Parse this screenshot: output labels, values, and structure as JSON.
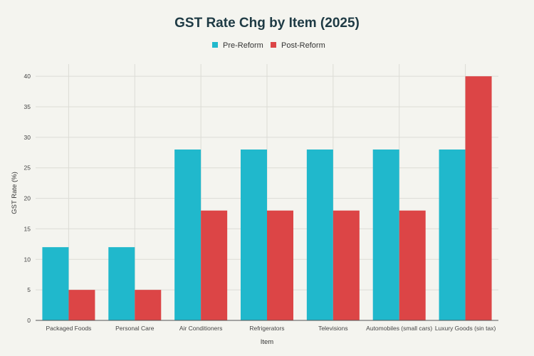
{
  "chart_data": {
    "type": "bar",
    "title": "GST Rate Chg by Item (2025)",
    "xlabel": "Item",
    "ylabel": "GST Rate (%)",
    "ylim": [
      0,
      42
    ],
    "yticks": [
      0,
      5,
      10,
      15,
      20,
      25,
      30,
      35,
      40
    ],
    "grid": true,
    "legend_position": "top-center",
    "categories": [
      "Packaged Foods",
      "Personal Care",
      "Air Conditioners",
      "Refrigerators",
      "Televisions",
      "Automobiles (small cars)",
      "Luxury Goods (sin tax)"
    ],
    "series": [
      {
        "name": "Pre-Reform",
        "color": "#20b8cc",
        "values": [
          12,
          12,
          28,
          28,
          28,
          28,
          28
        ]
      },
      {
        "name": "Post-Reform",
        "color": "#dc4546",
        "values": [
          5,
          5,
          18,
          18,
          18,
          18,
          40
        ]
      }
    ]
  }
}
